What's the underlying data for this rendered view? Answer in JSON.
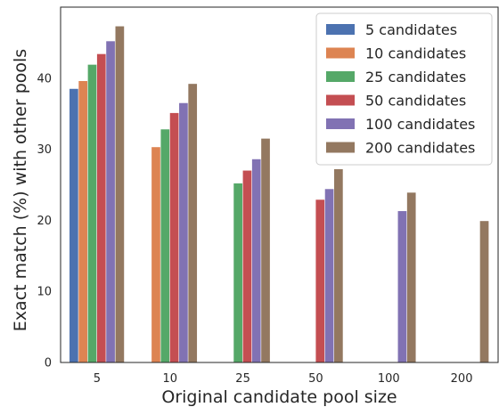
{
  "chart_data": {
    "type": "bar",
    "title": "",
    "xlabel": "Original candidate pool size",
    "ylabel": "Exact match (%) with other pools",
    "categories": [
      "5",
      "10",
      "25",
      "50",
      "100",
      "200"
    ],
    "ylim": [
      0,
      50
    ],
    "yticks": [
      0,
      10,
      20,
      30,
      40
    ],
    "grid": false,
    "legend_position": "top-right",
    "series": [
      {
        "name": "5 candidates",
        "color": "#4c72b0",
        "values": [
          38.5,
          null,
          null,
          null,
          null,
          null
        ]
      },
      {
        "name": "10 candidates",
        "color": "#dd8452",
        "values": [
          39.6,
          30.3,
          null,
          null,
          null,
          null
        ]
      },
      {
        "name": "25 candidates",
        "color": "#55a868",
        "values": [
          41.9,
          32.8,
          25.2,
          null,
          null,
          null
        ]
      },
      {
        "name": "50 candidates",
        "color": "#c44e52",
        "values": [
          43.4,
          35.1,
          27.0,
          22.9,
          null,
          null
        ]
      },
      {
        "name": "100 candidates",
        "color": "#8172b3",
        "values": [
          45.2,
          36.5,
          28.6,
          24.4,
          21.3,
          null
        ]
      },
      {
        "name": "200 candidates",
        "color": "#937860",
        "values": [
          47.3,
          39.2,
          31.5,
          27.2,
          23.9,
          19.9
        ]
      }
    ]
  }
}
